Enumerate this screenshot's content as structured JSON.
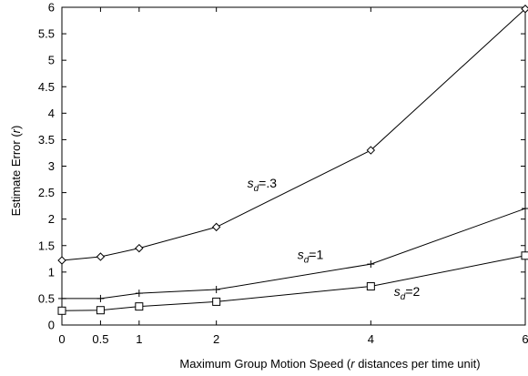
{
  "chart_data": {
    "type": "line",
    "title": "",
    "xlabel_parts": [
      {
        "text": "Maximum Group Motion Speed (",
        "italic": false
      },
      {
        "text": "r",
        "italic": true
      },
      {
        "text": " distances per time unit)",
        "italic": false
      }
    ],
    "ylabel_parts": [
      {
        "text": "Estimate Error (",
        "italic": false
      },
      {
        "text": "r",
        "italic": true
      },
      {
        "text": ")",
        "italic": false
      }
    ],
    "xlim": [
      0,
      6
    ],
    "ylim": [
      0,
      6
    ],
    "x_ticks": [
      {
        "value": 0,
        "label": "0"
      },
      {
        "value": 0.5,
        "label": "0.5"
      },
      {
        "value": 1,
        "label": "1"
      },
      {
        "value": 2,
        "label": "2"
      },
      {
        "value": 4,
        "label": "4"
      },
      {
        "value": 6,
        "label": "6"
      }
    ],
    "y_ticks": [
      {
        "value": 0,
        "label": "0"
      },
      {
        "value": 0.5,
        "label": "0.5"
      },
      {
        "value": 1,
        "label": "1"
      },
      {
        "value": 1.5,
        "label": "1.5"
      },
      {
        "value": 2,
        "label": "2"
      },
      {
        "value": 2.5,
        "label": "2.5"
      },
      {
        "value": 3,
        "label": "3"
      },
      {
        "value": 3.5,
        "label": "3.5"
      },
      {
        "value": 4,
        "label": "4"
      },
      {
        "value": 4.5,
        "label": "4.5"
      },
      {
        "value": 5,
        "label": "5"
      },
      {
        "value": 5.5,
        "label": "5.5"
      },
      {
        "value": 6,
        "label": "6"
      }
    ],
    "grid": false,
    "x": [
      0,
      0.5,
      1,
      2,
      4,
      6
    ],
    "series": [
      {
        "id": "sd-0.3",
        "marker": "diamond",
        "label_prefix": "s",
        "label_sub": "d",
        "label_suffix": "=.3",
        "label_anchor": {
          "x": 2.4,
          "y": 2.6
        },
        "values": [
          1.22,
          1.29,
          1.45,
          1.85,
          3.3,
          5.97
        ]
      },
      {
        "id": "sd-1",
        "marker": "plus",
        "label_prefix": "s",
        "label_sub": "d",
        "label_suffix": "=1",
        "label_anchor": {
          "x": 3.05,
          "y": 1.25
        },
        "values": [
          0.5,
          0.5,
          0.6,
          0.67,
          1.15,
          2.2
        ]
      },
      {
        "id": "sd-2",
        "marker": "square",
        "label_prefix": "s",
        "label_sub": "d",
        "label_suffix": "=2",
        "label_anchor": {
          "x": 4.3,
          "y": 0.55
        },
        "values": [
          0.27,
          0.28,
          0.35,
          0.44,
          0.73,
          1.31
        ]
      }
    ]
  }
}
